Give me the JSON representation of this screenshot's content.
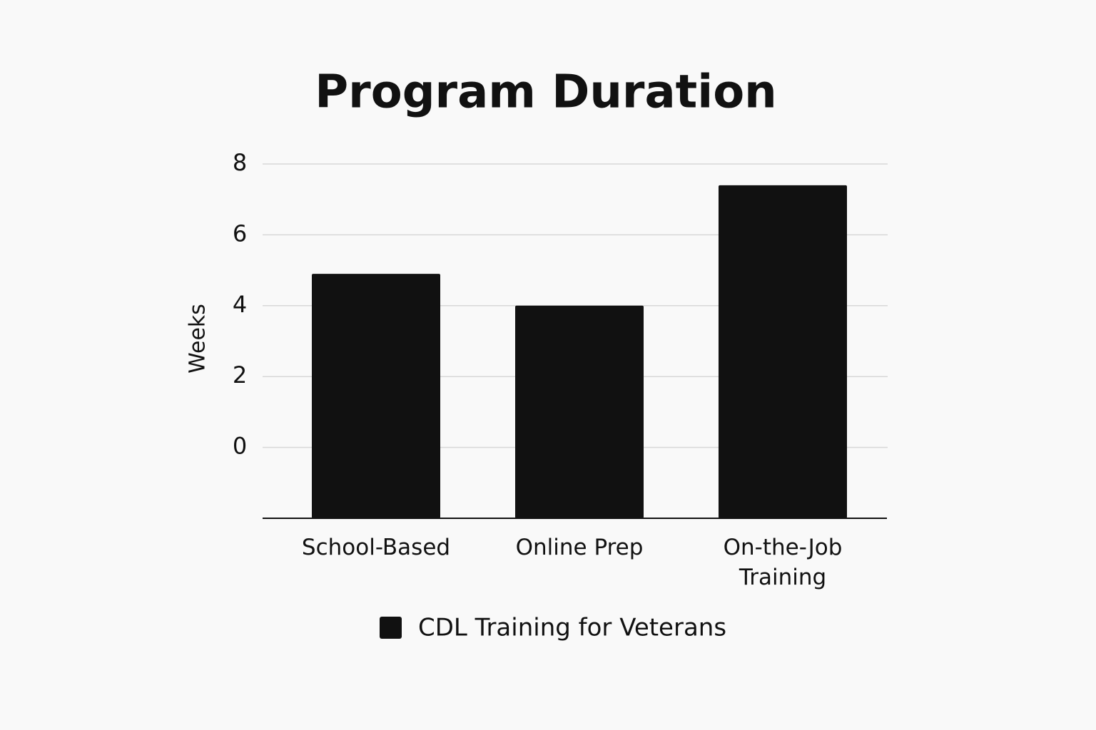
{
  "chart_data": {
    "type": "bar",
    "title": "Program Duration",
    "y_label": "Weeks",
    "categories": [
      "School-Based",
      "Online Prep",
      "On-the-Job Training"
    ],
    "series": [
      {
        "name": "CDL Training for Veterans",
        "color": "#111111",
        "values": [
          4.9,
          4,
          7.4
        ]
      }
    ],
    "ylim": [
      -2,
      8
    ],
    "yticks": [
      0,
      2,
      4,
      6,
      8
    ],
    "grid": true
  }
}
